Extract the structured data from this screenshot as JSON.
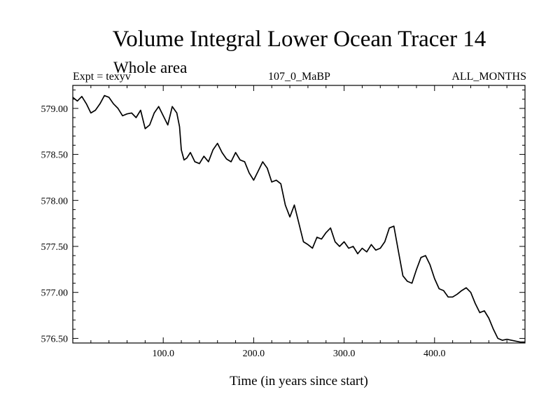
{
  "chart_data": {
    "type": "line",
    "title": "Volume Integral Lower Ocean Tracer 14",
    "subtitle": "Whole area",
    "header_left": "Expt = texyv",
    "header_center": "107_0_MaBP",
    "header_right": "ALL_MONTHS",
    "xlabel": "Time (in years since start)",
    "ylabel": "",
    "xlim": [
      0,
      500
    ],
    "ylim": [
      576.45,
      579.25
    ],
    "x_ticks": [
      100,
      200,
      300,
      400
    ],
    "x_tick_labels": [
      "100.0",
      "200.0",
      "300.0",
      "400.0"
    ],
    "y_ticks": [
      576.5,
      577.0,
      577.5,
      578.0,
      578.5,
      579.0
    ],
    "y_tick_labels": [
      "576.50",
      "577.00",
      "577.50",
      "578.00",
      "578.50",
      "579.00"
    ],
    "grid": false,
    "series": [
      {
        "color": "#000000",
        "x": [
          0,
          5,
          10,
          15,
          20,
          25,
          30,
          35,
          40,
          45,
          50,
          55,
          60,
          65,
          70,
          75,
          80,
          85,
          90,
          95,
          100,
          105,
          110,
          115,
          118,
          120,
          123,
          126,
          130,
          135,
          140,
          145,
          150,
          155,
          160,
          165,
          170,
          175,
          180,
          185,
          190,
          195,
          200,
          205,
          210,
          215,
          220,
          225,
          230,
          235,
          240,
          245,
          250,
          255,
          260,
          265,
          270,
          275,
          280,
          285,
          290,
          295,
          300,
          305,
          310,
          315,
          320,
          325,
          330,
          335,
          340,
          345,
          350,
          355,
          360,
          365,
          370,
          375,
          380,
          385,
          390,
          395,
          400,
          405,
          410,
          415,
          420,
          425,
          430,
          435,
          440,
          445,
          450,
          455,
          460,
          465,
          470,
          475,
          480,
          485,
          490,
          495,
          500
        ],
        "y": [
          579.12,
          579.08,
          579.13,
          579.05,
          578.95,
          578.98,
          579.05,
          579.14,
          579.12,
          579.05,
          579.0,
          578.92,
          578.94,
          578.95,
          578.9,
          578.98,
          578.78,
          578.82,
          578.95,
          579.02,
          578.92,
          578.82,
          579.02,
          578.95,
          578.8,
          578.55,
          578.44,
          578.46,
          578.52,
          578.42,
          578.4,
          578.48,
          578.42,
          578.55,
          578.62,
          578.52,
          578.45,
          578.42,
          578.52,
          578.44,
          578.42,
          578.3,
          578.22,
          578.32,
          578.42,
          578.35,
          578.2,
          578.22,
          578.18,
          577.95,
          577.82,
          577.95,
          577.75,
          577.55,
          577.52,
          577.48,
          577.6,
          577.58,
          577.65,
          577.7,
          577.55,
          577.5,
          577.55,
          577.48,
          577.5,
          577.42,
          577.48,
          577.44,
          577.52,
          577.46,
          577.48,
          577.55,
          577.7,
          577.72,
          577.45,
          577.18,
          577.12,
          577.1,
          577.25,
          577.38,
          577.4,
          577.3,
          577.15,
          577.04,
          577.02,
          576.95,
          576.95,
          576.98,
          577.02,
          577.05,
          577.0,
          576.88,
          576.78,
          576.8,
          576.72,
          576.6,
          576.5,
          576.48,
          576.49,
          576.48,
          576.47,
          576.46,
          576.46
        ]
      }
    ]
  }
}
